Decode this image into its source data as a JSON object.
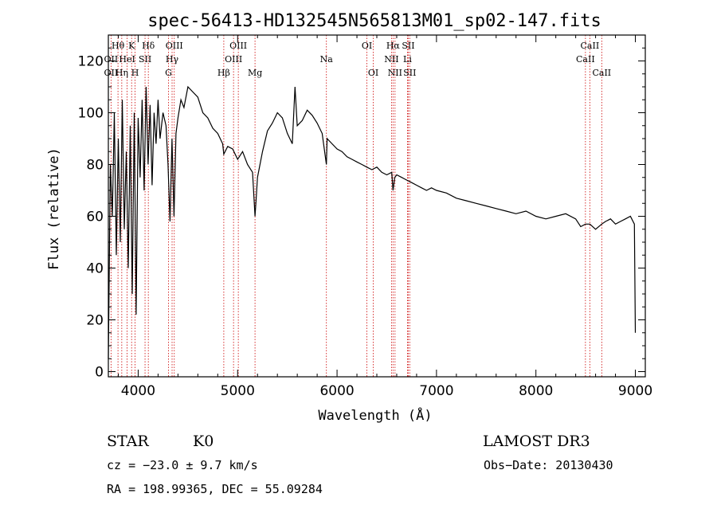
{
  "chart_data": {
    "type": "line",
    "title": "spec-56413-HD132545N565813M01_sp02-147.fits",
    "xlabel": "Wavelength (Å)",
    "ylabel": "Flux (relative)",
    "xlim": [
      3700,
      9100
    ],
    "ylim": [
      -2,
      130
    ],
    "xticks": [
      4000,
      5000,
      6000,
      7000,
      8000,
      9000
    ],
    "yticks": [
      0,
      20,
      40,
      60,
      80,
      100,
      120
    ],
    "grid": false,
    "series": [
      {
        "name": "spectrum",
        "x": [
          3700,
          3720,
          3740,
          3760,
          3780,
          3800,
          3820,
          3840,
          3860,
          3880,
          3900,
          3920,
          3940,
          3960,
          3980,
          4000,
          4020,
          4040,
          4060,
          4080,
          4100,
          4120,
          4140,
          4160,
          4180,
          4200,
          4220,
          4250,
          4280,
          4300,
          4320,
          4340,
          4360,
          4380,
          4400,
          4430,
          4460,
          4500,
          4550,
          4600,
          4650,
          4700,
          4750,
          4800,
          4850,
          4861,
          4900,
          4950,
          5000,
          5050,
          5100,
          5150,
          5175,
          5185,
          5200,
          5250,
          5300,
          5350,
          5400,
          5450,
          5500,
          5550,
          5577,
          5600,
          5650,
          5700,
          5750,
          5800,
          5850,
          5893,
          5900,
          5950,
          6000,
          6050,
          6100,
          6150,
          6200,
          6250,
          6300,
          6350,
          6400,
          6450,
          6500,
          6550,
          6563,
          6580,
          6600,
          6650,
          6700,
          6750,
          6800,
          6850,
          6900,
          6950,
          7000,
          7100,
          7200,
          7300,
          7400,
          7500,
          7600,
          7700,
          7800,
          7900,
          8000,
          8100,
          8200,
          8300,
          8400,
          8450,
          8498,
          8542,
          8600,
          8662,
          8700,
          8750,
          8800,
          8850,
          8900,
          8950,
          8990,
          9000
        ],
        "y": [
          5,
          80,
          60,
          100,
          45,
          90,
          50,
          105,
          55,
          85,
          40,
          95,
          30,
          100,
          22,
          98,
          75,
          105,
          70,
          110,
          80,
          103,
          72,
          100,
          88,
          105,
          90,
          100,
          95,
          80,
          58,
          90,
          60,
          92,
          98,
          105,
          102,
          110,
          108,
          106,
          100,
          98,
          94,
          92,
          88,
          84,
          87,
          86,
          82,
          85,
          80,
          77,
          60,
          66,
          75,
          85,
          93,
          96,
          100,
          98,
          92,
          88,
          110,
          95,
          97,
          101,
          99,
          96,
          92,
          80,
          90,
          88,
          86,
          85,
          83,
          82,
          81,
          80,
          79,
          78,
          79,
          77,
          76,
          77,
          70,
          75,
          76,
          75,
          74,
          73,
          72,
          71,
          70,
          71,
          70,
          69,
          67,
          66,
          65,
          64,
          63,
          62,
          61,
          62,
          60,
          59,
          60,
          61,
          59,
          56,
          57,
          57,
          55,
          57,
          58,
          59,
          57,
          58,
          59,
          60,
          57,
          15
        ]
      }
    ],
    "lines": [
      {
        "label": "Hθ",
        "x": 3797,
        "row": 0
      },
      {
        "label": "OII",
        "x": 3727,
        "row": 1
      },
      {
        "label": "OII",
        "x": 3727,
        "row": 2
      },
      {
        "label": "Hη",
        "x": 3835,
        "row": 2
      },
      {
        "label": "K",
        "x": 3934,
        "row": 0
      },
      {
        "label": "HeI",
        "x": 3889,
        "row": 1
      },
      {
        "label": "H",
        "x": 3969,
        "row": 2
      },
      {
        "label": "SII",
        "x": 4069,
        "row": 1
      },
      {
        "label": "Hδ",
        "x": 4102,
        "row": 0
      },
      {
        "label": "OIII",
        "x": 4363,
        "row": 0
      },
      {
        "label": "Hγ",
        "x": 4341,
        "row": 1
      },
      {
        "label": "G",
        "x": 4305,
        "row": 2
      },
      {
        "label": "Hβ",
        "x": 4861,
        "row": 2
      },
      {
        "label": "OIII",
        "x": 5007,
        "row": 0
      },
      {
        "label": "OIII",
        "x": 4959,
        "row": 1
      },
      {
        "label": "Mg",
        "x": 5175,
        "row": 2
      },
      {
        "label": "Na",
        "x": 5893,
        "row": 1
      },
      {
        "label": "OI",
        "x": 6300,
        "row": 0
      },
      {
        "label": "OI",
        "x": 6364,
        "row": 2
      },
      {
        "label": "Hα",
        "x": 6563,
        "row": 0
      },
      {
        "label": "SII",
        "x": 6716,
        "row": 0
      },
      {
        "label": "NII",
        "x": 6548,
        "row": 1
      },
      {
        "label": "Li",
        "x": 6708,
        "row": 1
      },
      {
        "label": "NII",
        "x": 6583,
        "row": 2
      },
      {
        "label": "SII",
        "x": 6731,
        "row": 2
      },
      {
        "label": "CaII",
        "x": 8542,
        "row": 0
      },
      {
        "label": "CaII",
        "x": 8498,
        "row": 1
      },
      {
        "label": "CaII",
        "x": 8662,
        "row": 2
      }
    ]
  },
  "info": {
    "class": "STAR",
    "subclass": "K0",
    "survey": "LAMOST DR3",
    "cz": "cz = −23.0 ± 9.7 km/s",
    "obsdate": "Obs−Date: 20130430",
    "radec": "RA = 198.99365, DEC =  55.09284"
  },
  "colors": {
    "line_marker": "#cc0000",
    "spectrum": "#000000"
  }
}
